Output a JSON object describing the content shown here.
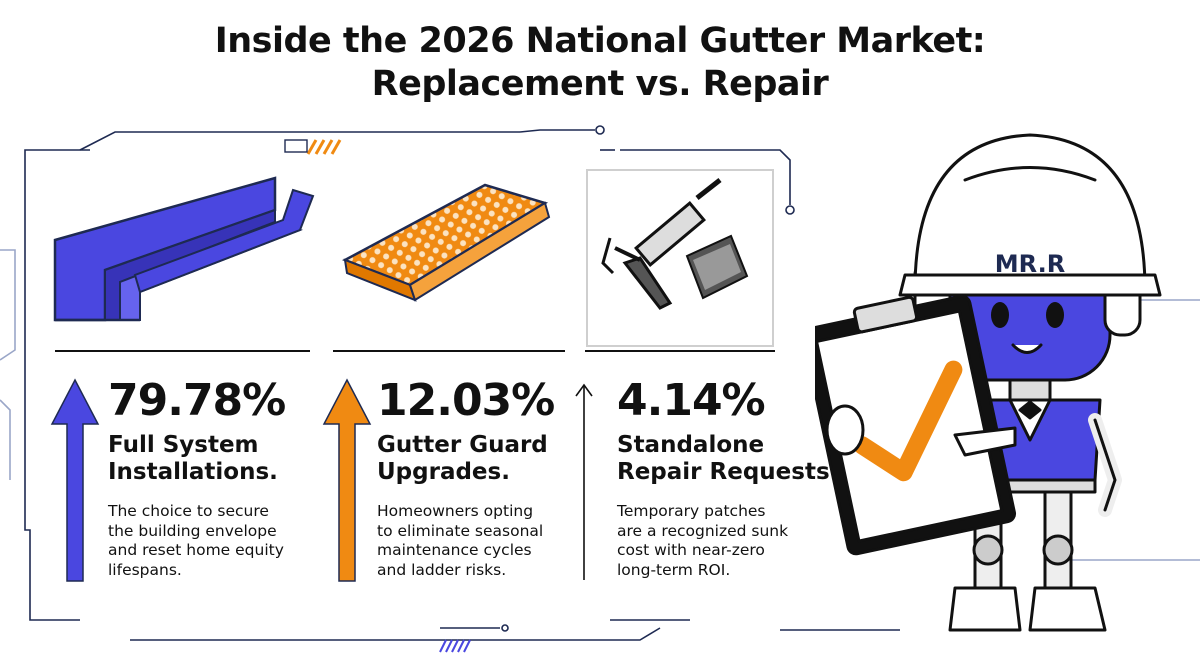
{
  "title": {
    "line1": "Inside the 2026 National Gutter Market:",
    "line2": "Replacement vs. Repair"
  },
  "colors": {
    "blue": "#4a47e0",
    "orange": "#f08a12",
    "ink": "#111111",
    "line": "#1e2a52"
  },
  "icons": [
    "gutter-icon",
    "gutter-guard-icon",
    "caulk-gun-icon",
    "robot-mascot-icon",
    "clipboard-check-icon"
  ],
  "mascot": {
    "helmet_text": "MR.R"
  },
  "stats": [
    {
      "percent": "79.78%",
      "heading_line1": "Full System",
      "heading_line2": "Installations.",
      "desc_lines": [
        "The choice to secure",
        "the building envelope",
        "and reset home equity",
        "lifespans."
      ]
    },
    {
      "percent": "12.03%",
      "heading_line1": "Gutter Guard",
      "heading_line2": "Upgrades.",
      "desc_lines": [
        "Homeowners opting",
        "to eliminate seasonal",
        "maintenance cycles",
        "and ladder risks."
      ]
    },
    {
      "percent": "4.14%",
      "heading_line1": "Standalone",
      "heading_line2": "Repair Requests.",
      "desc_lines": [
        "Temporary patches",
        "are a recognized sunk",
        "cost with near-zero",
        "long-term ROI."
      ]
    }
  ]
}
